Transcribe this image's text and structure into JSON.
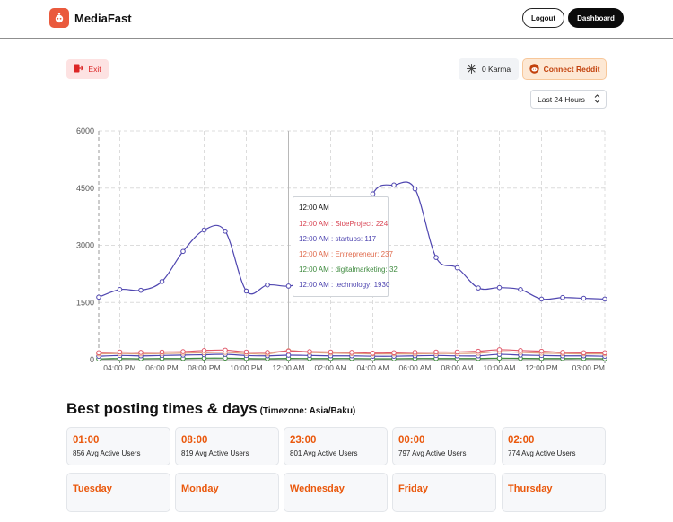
{
  "app": {
    "name": "MediaFast"
  },
  "header": {
    "logout_label": "Logout",
    "dashboard_label": "Dashboard"
  },
  "toolbar": {
    "exit_label": "Exit",
    "karma_label": "0 Karma",
    "connect_label": "Connect Reddit",
    "range_value": "Last 24 Hours"
  },
  "chart_data": {
    "type": "line",
    "x": [
      "03:00 PM",
      "04:00 PM",
      "05:00 PM",
      "06:00 PM",
      "07:00 PM",
      "08:00 PM",
      "09:00 PM",
      "10:00 PM",
      "11:00 PM",
      "12:00 AM",
      "01:00 AM",
      "02:00 AM",
      "03:00 AM",
      "04:00 AM",
      "05:00 AM",
      "06:00 AM",
      "07:00 AM",
      "08:00 AM",
      "09:00 AM",
      "10:00 AM",
      "11:00 AM",
      "12:00 PM",
      "01:00 PM",
      "02:00 PM",
      "03:00 PM"
    ],
    "tick_labels": [
      "04:00 PM",
      "06:00 PM",
      "08:00 PM",
      "10:00 PM",
      "12:00 AM",
      "02:00 AM",
      "04:00 AM",
      "06:00 AM",
      "08:00 AM",
      "10:00 AM",
      "12:00 PM",
      "03:00 PM"
    ],
    "ylim": [
      0,
      6000
    ],
    "yticks": [
      0,
      1500,
      3000,
      4500,
      6000
    ],
    "grid": true,
    "series": [
      {
        "name": "technology",
        "color": "#4f46b0",
        "values": [
          1640,
          1840,
          1820,
          2050,
          2840,
          3400,
          3370,
          1800,
          1960,
          1930,
          2050,
          2150,
          2600,
          4350,
          4580,
          4480,
          2680,
          2410,
          1880,
          1890,
          1840,
          1590,
          1630,
          1610,
          1590
        ]
      },
      {
        "name": "SideProject",
        "color": "#e05a6b",
        "values": [
          180,
          200,
          190,
          200,
          210,
          240,
          250,
          200,
          190,
          224,
          210,
          200,
          190,
          170,
          180,
          190,
          200,
          200,
          220,
          260,
          240,
          220,
          190,
          180,
          180
        ]
      },
      {
        "name": "Entrepreneur",
        "color": "#e0a080",
        "values": [
          150,
          160,
          150,
          160,
          170,
          180,
          190,
          160,
          150,
          237,
          190,
          170,
          160,
          150,
          150,
          150,
          160,
          160,
          170,
          210,
          190,
          170,
          160,
          150,
          150
        ]
      },
      {
        "name": "startups",
        "color": "#4f46b0",
        "values": [
          90,
          110,
          100,
          110,
          120,
          130,
          140,
          110,
          100,
          117,
          110,
          100,
          100,
          90,
          90,
          100,
          110,
          100,
          100,
          140,
          120,
          110,
          100,
          100,
          90
        ]
      },
      {
        "name": "digitalmarketing",
        "color": "#3e8a3e",
        "values": [
          20,
          30,
          25,
          30,
          30,
          40,
          40,
          30,
          25,
          32,
          30,
          30,
          30,
          25,
          25,
          30,
          30,
          30,
          30,
          40,
          35,
          30,
          30,
          30,
          25
        ]
      }
    ],
    "tooltip": {
      "title": "12:00 AM",
      "rows": [
        {
          "text": "12:00 AM : SideProject: 224",
          "color": "#d94857"
        },
        {
          "text": "12:00 AM : startups: 117",
          "color": "#4f46b0"
        },
        {
          "text": "12:00 AM : Entrepreneur: 237",
          "color": "#e06b4d"
        },
        {
          "text": "12:00 AM : digitalmarketing: 32",
          "color": "#3e8a3e"
        },
        {
          "text": "12:00 AM : technology: 1930",
          "color": "#4f46b0"
        }
      ]
    }
  },
  "best_times": {
    "title": "Best posting times & days",
    "timezone": "(Timezone: Asia/Baku)",
    "times": [
      {
        "time": "01:00",
        "users": "856 Avg Active Users"
      },
      {
        "time": "08:00",
        "users": "819 Avg Active Users"
      },
      {
        "time": "23:00",
        "users": "801 Avg Active Users"
      },
      {
        "time": "00:00",
        "users": "797 Avg Active Users"
      },
      {
        "time": "02:00",
        "users": "774 Avg Active Users"
      }
    ],
    "days": [
      "Tuesday",
      "Monday",
      "Wednesday",
      "Friday",
      "Thursday"
    ]
  }
}
